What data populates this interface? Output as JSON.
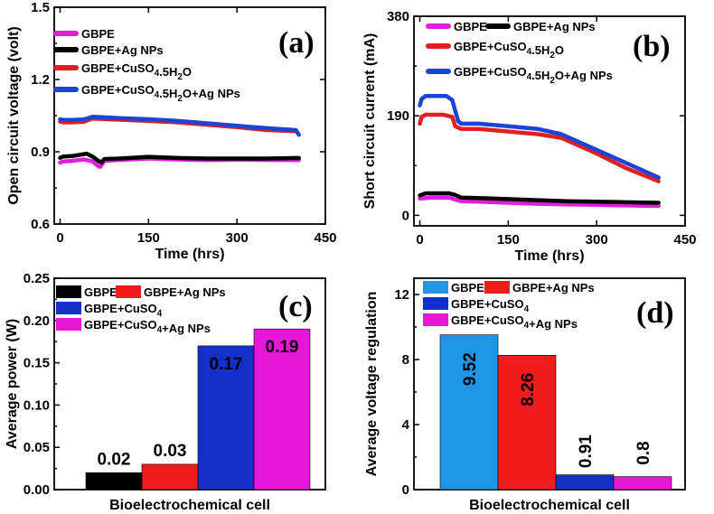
{
  "chart_data": [
    {
      "panel": "(a)",
      "type": "line",
      "xlabel": "Time (hrs)",
      "ylabel": "Open circuit voltage (volt)",
      "xlim": [
        -10,
        450
      ],
      "ylim": [
        0.6,
        1.5
      ],
      "xticks": [
        "0",
        "150",
        "300",
        "450"
      ],
      "yticks": [
        "0.6",
        "0.9",
        "1.2",
        "1.5"
      ],
      "legend": [
        "GBPE",
        "GBPE+Ag NPs",
        "GBPE+CuSO4.5H2O",
        "GBPE+CuSO4.5H2O+Ag NPs"
      ],
      "series": [
        {
          "name": "GBPE",
          "color": "#e020d8",
          "points": [
            [
              0,
              0.855
            ],
            [
              5,
              0.86
            ],
            [
              20,
              0.862
            ],
            [
              40,
              0.868
            ],
            [
              55,
              0.86
            ],
            [
              65,
              0.84
            ],
            [
              68,
              0.837
            ],
            [
              75,
              0.862
            ],
            [
              100,
              0.866
            ],
            [
              150,
              0.872
            ],
            [
              200,
              0.868
            ],
            [
              250,
              0.865
            ],
            [
              300,
              0.867
            ],
            [
              350,
              0.866
            ],
            [
              405,
              0.866
            ]
          ]
        },
        {
          "name": "GBPE+Ag NPs",
          "color": "#000000",
          "points": [
            [
              0,
              0.875
            ],
            [
              5,
              0.88
            ],
            [
              20,
              0.882
            ],
            [
              45,
              0.892
            ],
            [
              55,
              0.88
            ],
            [
              65,
              0.862
            ],
            [
              70,
              0.855
            ],
            [
              75,
              0.87
            ],
            [
              100,
              0.872
            ],
            [
              150,
              0.879
            ],
            [
              200,
              0.874
            ],
            [
              250,
              0.872
            ],
            [
              300,
              0.872
            ],
            [
              350,
              0.872
            ],
            [
              405,
              0.874
            ]
          ]
        },
        {
          "name": "GBPE+CuSO4.5H2O",
          "color": "#e02020",
          "points": [
            [
              0,
              1.025
            ],
            [
              5,
              1.022
            ],
            [
              20,
              1.022
            ],
            [
              40,
              1.024
            ],
            [
              55,
              1.038
            ],
            [
              100,
              1.033
            ],
            [
              150,
              1.028
            ],
            [
              200,
              1.022
            ],
            [
              250,
              1.012
            ],
            [
              300,
              1.002
            ],
            [
              350,
              0.99
            ],
            [
              400,
              0.985
            ]
          ]
        },
        {
          "name": "GBPE+CuSO4.5H2O+Ag NPs",
          "color": "#1a44d6",
          "points": [
            [
              0,
              1.035
            ],
            [
              5,
              1.032
            ],
            [
              20,
              1.032
            ],
            [
              40,
              1.034
            ],
            [
              55,
              1.045
            ],
            [
              100,
              1.04
            ],
            [
              150,
              1.035
            ],
            [
              200,
              1.028
            ],
            [
              250,
              1.018
            ],
            [
              300,
              1.008
            ],
            [
              350,
              0.998
            ],
            [
              400,
              0.99
            ],
            [
              405,
              0.97
            ]
          ]
        }
      ]
    },
    {
      "panel": "(b)",
      "type": "line",
      "xlabel": "Time (hrs)",
      "ylabel": "Short circuit current (mA)",
      "xlim": [
        -10,
        450
      ],
      "ylim": [
        -20,
        380
      ],
      "xticks": [
        "0",
        "150",
        "300",
        "450"
      ],
      "yticks": [
        "0",
        "190",
        "380"
      ],
      "legend": [
        "GBPE",
        "GBPE+Ag NPs",
        "GBPE+CuSO4.5H2O",
        "GBPE+CuSO4.5H2O+Ag NPs"
      ],
      "series": [
        {
          "name": "GBPE",
          "color": "#e020d8",
          "points": [
            [
              0,
              32
            ],
            [
              20,
              34
            ],
            [
              50,
              34
            ],
            [
              60,
              30
            ],
            [
              70,
              27
            ],
            [
              100,
              26
            ],
            [
              150,
              24
            ],
            [
              200,
              22
            ],
            [
              250,
              21
            ],
            [
              300,
              20
            ],
            [
              350,
              19
            ],
            [
              405,
              18
            ]
          ]
        },
        {
          "name": "GBPE+Ag NPs",
          "color": "#000000",
          "points": [
            [
              0,
              38
            ],
            [
              10,
              42
            ],
            [
              50,
              42
            ],
            [
              60,
              39
            ],
            [
              70,
              34
            ],
            [
              100,
              33
            ],
            [
              150,
              31
            ],
            [
              200,
              29
            ],
            [
              250,
              27
            ],
            [
              300,
              26
            ],
            [
              350,
              25
            ],
            [
              405,
              24
            ]
          ]
        },
        {
          "name": "GBPE+CuSO4.5H2O",
          "color": "#e02020",
          "points": [
            [
              0,
              175
            ],
            [
              3,
              188
            ],
            [
              10,
              192
            ],
            [
              40,
              192
            ],
            [
              55,
              188
            ],
            [
              60,
              170
            ],
            [
              70,
              165
            ],
            [
              100,
              165
            ],
            [
              150,
              160
            ],
            [
              200,
              155
            ],
            [
              240,
              148
            ],
            [
              300,
              118
            ],
            [
              350,
              90
            ],
            [
              405,
              65
            ]
          ]
        },
        {
          "name": "GBPE+CuSO4.5H2O+Ag NPs",
          "color": "#1a44d6",
          "points": [
            [
              0,
              210
            ],
            [
              3,
              222
            ],
            [
              10,
              228
            ],
            [
              45,
              228
            ],
            [
              55,
              220
            ],
            [
              65,
              180
            ],
            [
              70,
              175
            ],
            [
              100,
              175
            ],
            [
              150,
              170
            ],
            [
              200,
              165
            ],
            [
              240,
              155
            ],
            [
              300,
              125
            ],
            [
              350,
              100
            ],
            [
              405,
              72
            ]
          ]
        }
      ]
    },
    {
      "panel": "(c)",
      "type": "bar",
      "xlabel": "Bioelectrochemical cell",
      "ylabel": "Average power (W)",
      "ylim": [
        0,
        0.25
      ],
      "yticks": [
        "0.00",
        "0.05",
        "0.10",
        "0.15",
        "0.20",
        "0.25"
      ],
      "categories": [
        "GBPE",
        "GBPE+Ag NPs",
        "GBPE+CuSO4",
        "GBPE+CuSO4+Ag NPs"
      ],
      "values": [
        0.02,
        0.03,
        0.17,
        0.19
      ],
      "labels": [
        "0.02",
        "0.03",
        "0.17",
        "0.19"
      ],
      "colors": [
        "#000000",
        "#ee1c1c",
        "#1430c8",
        "#e617d8"
      ]
    },
    {
      "panel": "(d)",
      "type": "bar",
      "xlabel": "Bioelectrochemical cell",
      "ylabel": "Average voltage regulation",
      "ylim": [
        0,
        13
      ],
      "yticks": [
        "0",
        "4",
        "8",
        "12"
      ],
      "categories": [
        "GBPE",
        "GBPE+Ag NPs",
        "GBPE+CuSO4",
        "GBPE+CuSO4+Ag NPs"
      ],
      "values": [
        9.52,
        8.26,
        0.91,
        0.8
      ],
      "labels": [
        "9.52",
        "8.26",
        "0.91",
        "0.8"
      ],
      "colors": [
        "#1e96e6",
        "#ee1c1c",
        "#1430c8",
        "#e617d8"
      ]
    }
  ]
}
